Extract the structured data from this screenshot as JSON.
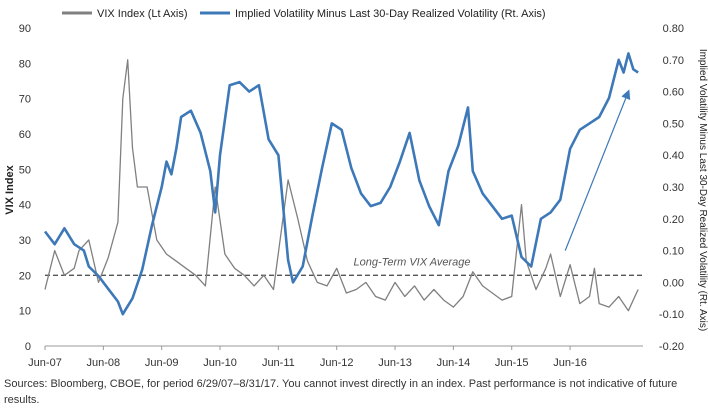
{
  "chart_data": {
    "type": "line",
    "title": "",
    "ylabel": "VIX Index",
    "y2label": "Implied Volatility Minus Last 30-Day Realized Volatility (Rt. Axis)",
    "xlabel": "",
    "x_ticks": [
      "Jun-07",
      "Jun-08",
      "Jun-09",
      "Jun-10",
      "Jun-11",
      "Jun-12",
      "Jun-13",
      "Jun-14",
      "Jun-15",
      "Jun-16"
    ],
    "ylim": [
      0,
      90
    ],
    "y_ticks": [
      "0",
      "10",
      "20",
      "30",
      "40",
      "50",
      "60",
      "70",
      "80",
      "90"
    ],
    "y2lim": [
      -0.2,
      0.8
    ],
    "y2_ticks": [
      "-0.20",
      "-0.10",
      "0.00",
      "0.10",
      "0.20",
      "0.30",
      "0.40",
      "0.50",
      "0.60",
      "0.70",
      "0.80"
    ],
    "legend_position": "top",
    "grid": false,
    "series": [
      {
        "name": "VIX Index (Lt Axis)",
        "axis": "left",
        "color": "#808080",
        "points": [
          [
            "2007-06",
            16
          ],
          [
            "2007-08",
            27
          ],
          [
            "2007-10",
            20
          ],
          [
            "2007-12",
            22
          ],
          [
            "2008-01",
            27
          ],
          [
            "2008-03",
            30
          ],
          [
            "2008-05",
            18
          ],
          [
            "2008-07",
            25
          ],
          [
            "2008-09",
            35
          ],
          [
            "2008-10",
            70
          ],
          [
            "2008-11",
            81
          ],
          [
            "2008-12",
            56
          ],
          [
            "2009-01",
            45
          ],
          [
            "2009-03",
            45
          ],
          [
            "2009-05",
            30
          ],
          [
            "2009-07",
            26
          ],
          [
            "2009-09",
            24
          ],
          [
            "2009-11",
            22
          ],
          [
            "2010-01",
            20
          ],
          [
            "2010-03",
            17
          ],
          [
            "2010-05",
            45
          ],
          [
            "2010-07",
            26
          ],
          [
            "2010-09",
            22
          ],
          [
            "2010-11",
            20
          ],
          [
            "2011-01",
            17
          ],
          [
            "2011-03",
            20
          ],
          [
            "2011-05",
            16
          ],
          [
            "2011-08",
            47
          ],
          [
            "2011-10",
            36
          ],
          [
            "2011-12",
            24
          ],
          [
            "2012-02",
            18
          ],
          [
            "2012-04",
            17
          ],
          [
            "2012-06",
            22
          ],
          [
            "2012-08",
            15
          ],
          [
            "2012-10",
            16
          ],
          [
            "2012-12",
            18
          ],
          [
            "2013-02",
            14
          ],
          [
            "2013-04",
            13
          ],
          [
            "2013-06",
            18
          ],
          [
            "2013-08",
            14
          ],
          [
            "2013-10",
            17
          ],
          [
            "2013-12",
            13
          ],
          [
            "2014-02",
            16
          ],
          [
            "2014-04",
            13
          ],
          [
            "2014-06",
            11
          ],
          [
            "2014-08",
            14
          ],
          [
            "2014-10",
            21
          ],
          [
            "2014-12",
            17
          ],
          [
            "2015-02",
            15
          ],
          [
            "2015-04",
            13
          ],
          [
            "2015-06",
            14
          ],
          [
            "2015-08",
            40
          ],
          [
            "2015-09",
            24
          ],
          [
            "2015-11",
            16
          ],
          [
            "2016-01",
            22
          ],
          [
            "2016-02",
            26
          ],
          [
            "2016-04",
            14
          ],
          [
            "2016-06",
            23
          ],
          [
            "2016-08",
            12
          ],
          [
            "2016-10",
            14
          ],
          [
            "2016-11",
            22
          ],
          [
            "2016-12",
            12
          ],
          [
            "2017-02",
            11
          ],
          [
            "2017-04",
            14
          ],
          [
            "2017-06",
            10
          ],
          [
            "2017-08",
            16
          ]
        ]
      },
      {
        "name": "Implied Volatility Minus Last 30-Day Realized Volatility (Rt. Axis)",
        "axis": "right",
        "color": "#3d78b8",
        "points": [
          [
            "2007-06",
            0.16
          ],
          [
            "2007-08",
            0.12
          ],
          [
            "2007-10",
            0.17
          ],
          [
            "2007-12",
            0.12
          ],
          [
            "2008-02",
            0.1
          ],
          [
            "2008-03",
            0.05
          ],
          [
            "2008-05",
            0.02
          ],
          [
            "2008-07",
            -0.02
          ],
          [
            "2008-09",
            -0.06
          ],
          [
            "2008-10",
            -0.1
          ],
          [
            "2008-12",
            -0.05
          ],
          [
            "2009-02",
            0.04
          ],
          [
            "2009-04",
            0.18
          ],
          [
            "2009-06",
            0.3
          ],
          [
            "2009-07",
            0.38
          ],
          [
            "2009-08",
            0.34
          ],
          [
            "2009-09",
            0.42
          ],
          [
            "2009-10",
            0.52
          ],
          [
            "2009-12",
            0.54
          ],
          [
            "2010-02",
            0.47
          ],
          [
            "2010-04",
            0.35
          ],
          [
            "2010-05",
            0.22
          ],
          [
            "2010-06",
            0.4
          ],
          [
            "2010-08",
            0.62
          ],
          [
            "2010-10",
            0.63
          ],
          [
            "2010-12",
            0.6
          ],
          [
            "2011-02",
            0.62
          ],
          [
            "2011-04",
            0.45
          ],
          [
            "2011-06",
            0.4
          ],
          [
            "2011-08",
            0.07
          ],
          [
            "2011-09",
            0.0
          ],
          [
            "2011-11",
            0.05
          ],
          [
            "2012-01",
            0.21
          ],
          [
            "2012-03",
            0.36
          ],
          [
            "2012-05",
            0.5
          ],
          [
            "2012-07",
            0.48
          ],
          [
            "2012-09",
            0.36
          ],
          [
            "2012-11",
            0.28
          ],
          [
            "2013-01",
            0.24
          ],
          [
            "2013-03",
            0.25
          ],
          [
            "2013-05",
            0.3
          ],
          [
            "2013-07",
            0.38
          ],
          [
            "2013-09",
            0.47
          ],
          [
            "2013-11",
            0.32
          ],
          [
            "2014-01",
            0.24
          ],
          [
            "2014-03",
            0.18
          ],
          [
            "2014-05",
            0.35
          ],
          [
            "2014-07",
            0.43
          ],
          [
            "2014-09",
            0.55
          ],
          [
            "2014-10",
            0.35
          ],
          [
            "2014-12",
            0.28
          ],
          [
            "2015-02",
            0.24
          ],
          [
            "2015-04",
            0.2
          ],
          [
            "2015-06",
            0.21
          ],
          [
            "2015-08",
            0.08
          ],
          [
            "2015-10",
            0.05
          ],
          [
            "2015-12",
            0.2
          ],
          [
            "2016-02",
            0.22
          ],
          [
            "2016-04",
            0.26
          ],
          [
            "2016-06",
            0.42
          ],
          [
            "2016-08",
            0.48
          ],
          [
            "2016-10",
            0.5
          ],
          [
            "2016-12",
            0.52
          ],
          [
            "2017-02",
            0.58
          ],
          [
            "2017-04",
            0.7
          ],
          [
            "2017-05",
            0.66
          ],
          [
            "2017-06",
            0.72
          ],
          [
            "2017-07",
            0.67
          ],
          [
            "2017-08",
            0.66
          ]
        ]
      }
    ],
    "reference_line": {
      "label": "Long-Term VIX Average",
      "value": 20,
      "axis": "left",
      "color": "#555555"
    },
    "trend_arrow": {
      "from": [
        "2016-05",
        0.1
      ],
      "to": [
        "2017-06",
        0.6
      ],
      "axis": "right",
      "color": "#3d78b8"
    }
  },
  "footer": {
    "source": "Sources: Bloomberg, CBOE, for period 6/29/07–8/31/17. You cannot invest directly in an index. Past performance is not indicative of future results."
  }
}
